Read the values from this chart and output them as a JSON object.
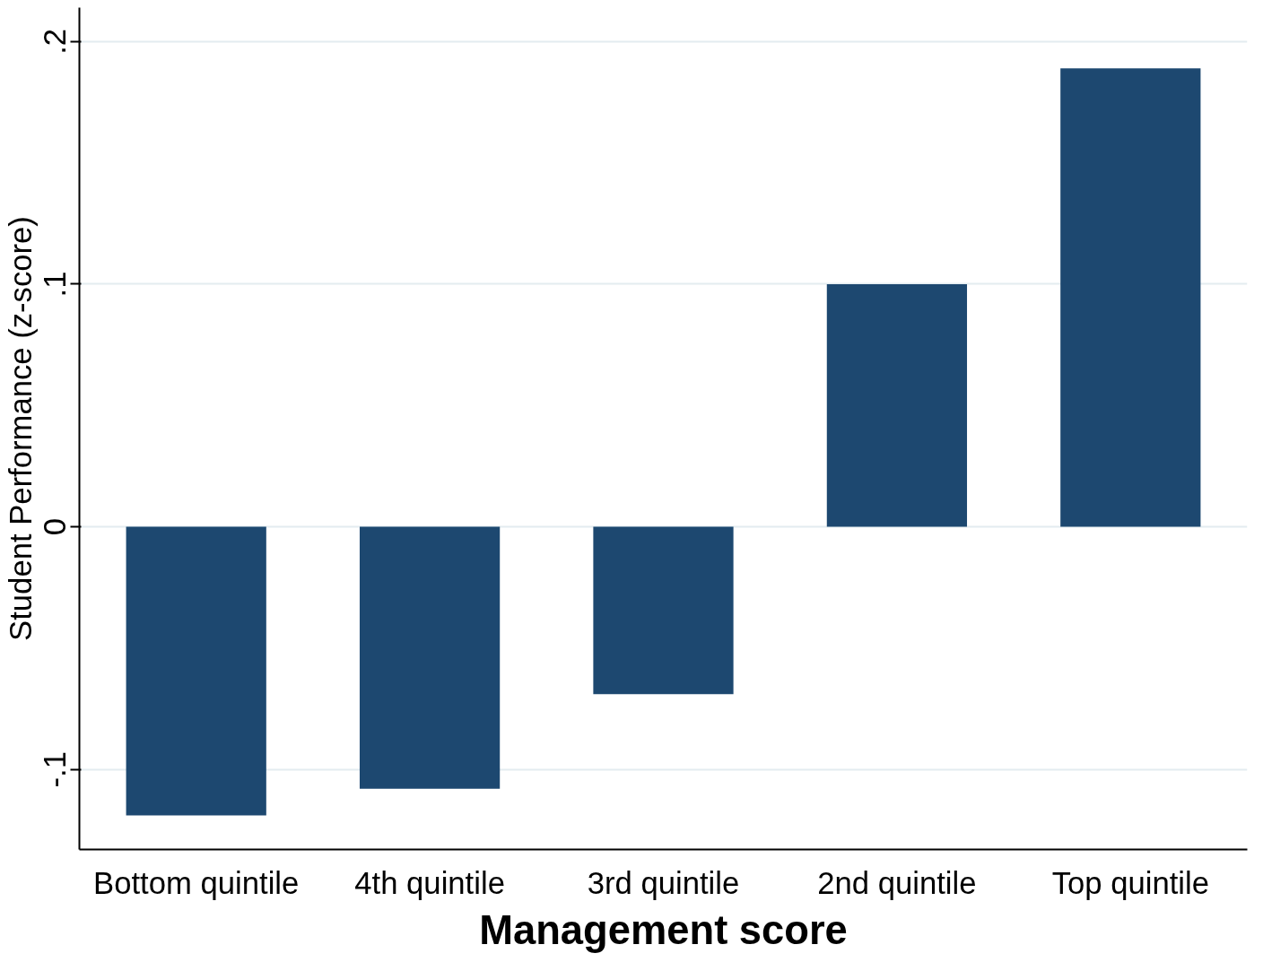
{
  "chart_data": {
    "type": "bar",
    "xlabel": "Management score",
    "ylabel": "Student Performance (z-score)",
    "categories": [
      "Bottom quintile",
      "4th quintile",
      "3rd quintile",
      "2nd quintile",
      "Top quintile"
    ],
    "values": [
      -0.119,
      -0.108,
      -0.069,
      0.1,
      0.189
    ],
    "color": "#1d4870",
    "ylim": [
      -0.133,
      0.214
    ],
    "yticks": [
      {
        "value": -0.1,
        "label": "-.1"
      },
      0,
      {
        "value": 0.1,
        "label": ".1"
      },
      {
        "value": 0.2,
        "label": ".2"
      }
    ],
    "grid": "y"
  }
}
